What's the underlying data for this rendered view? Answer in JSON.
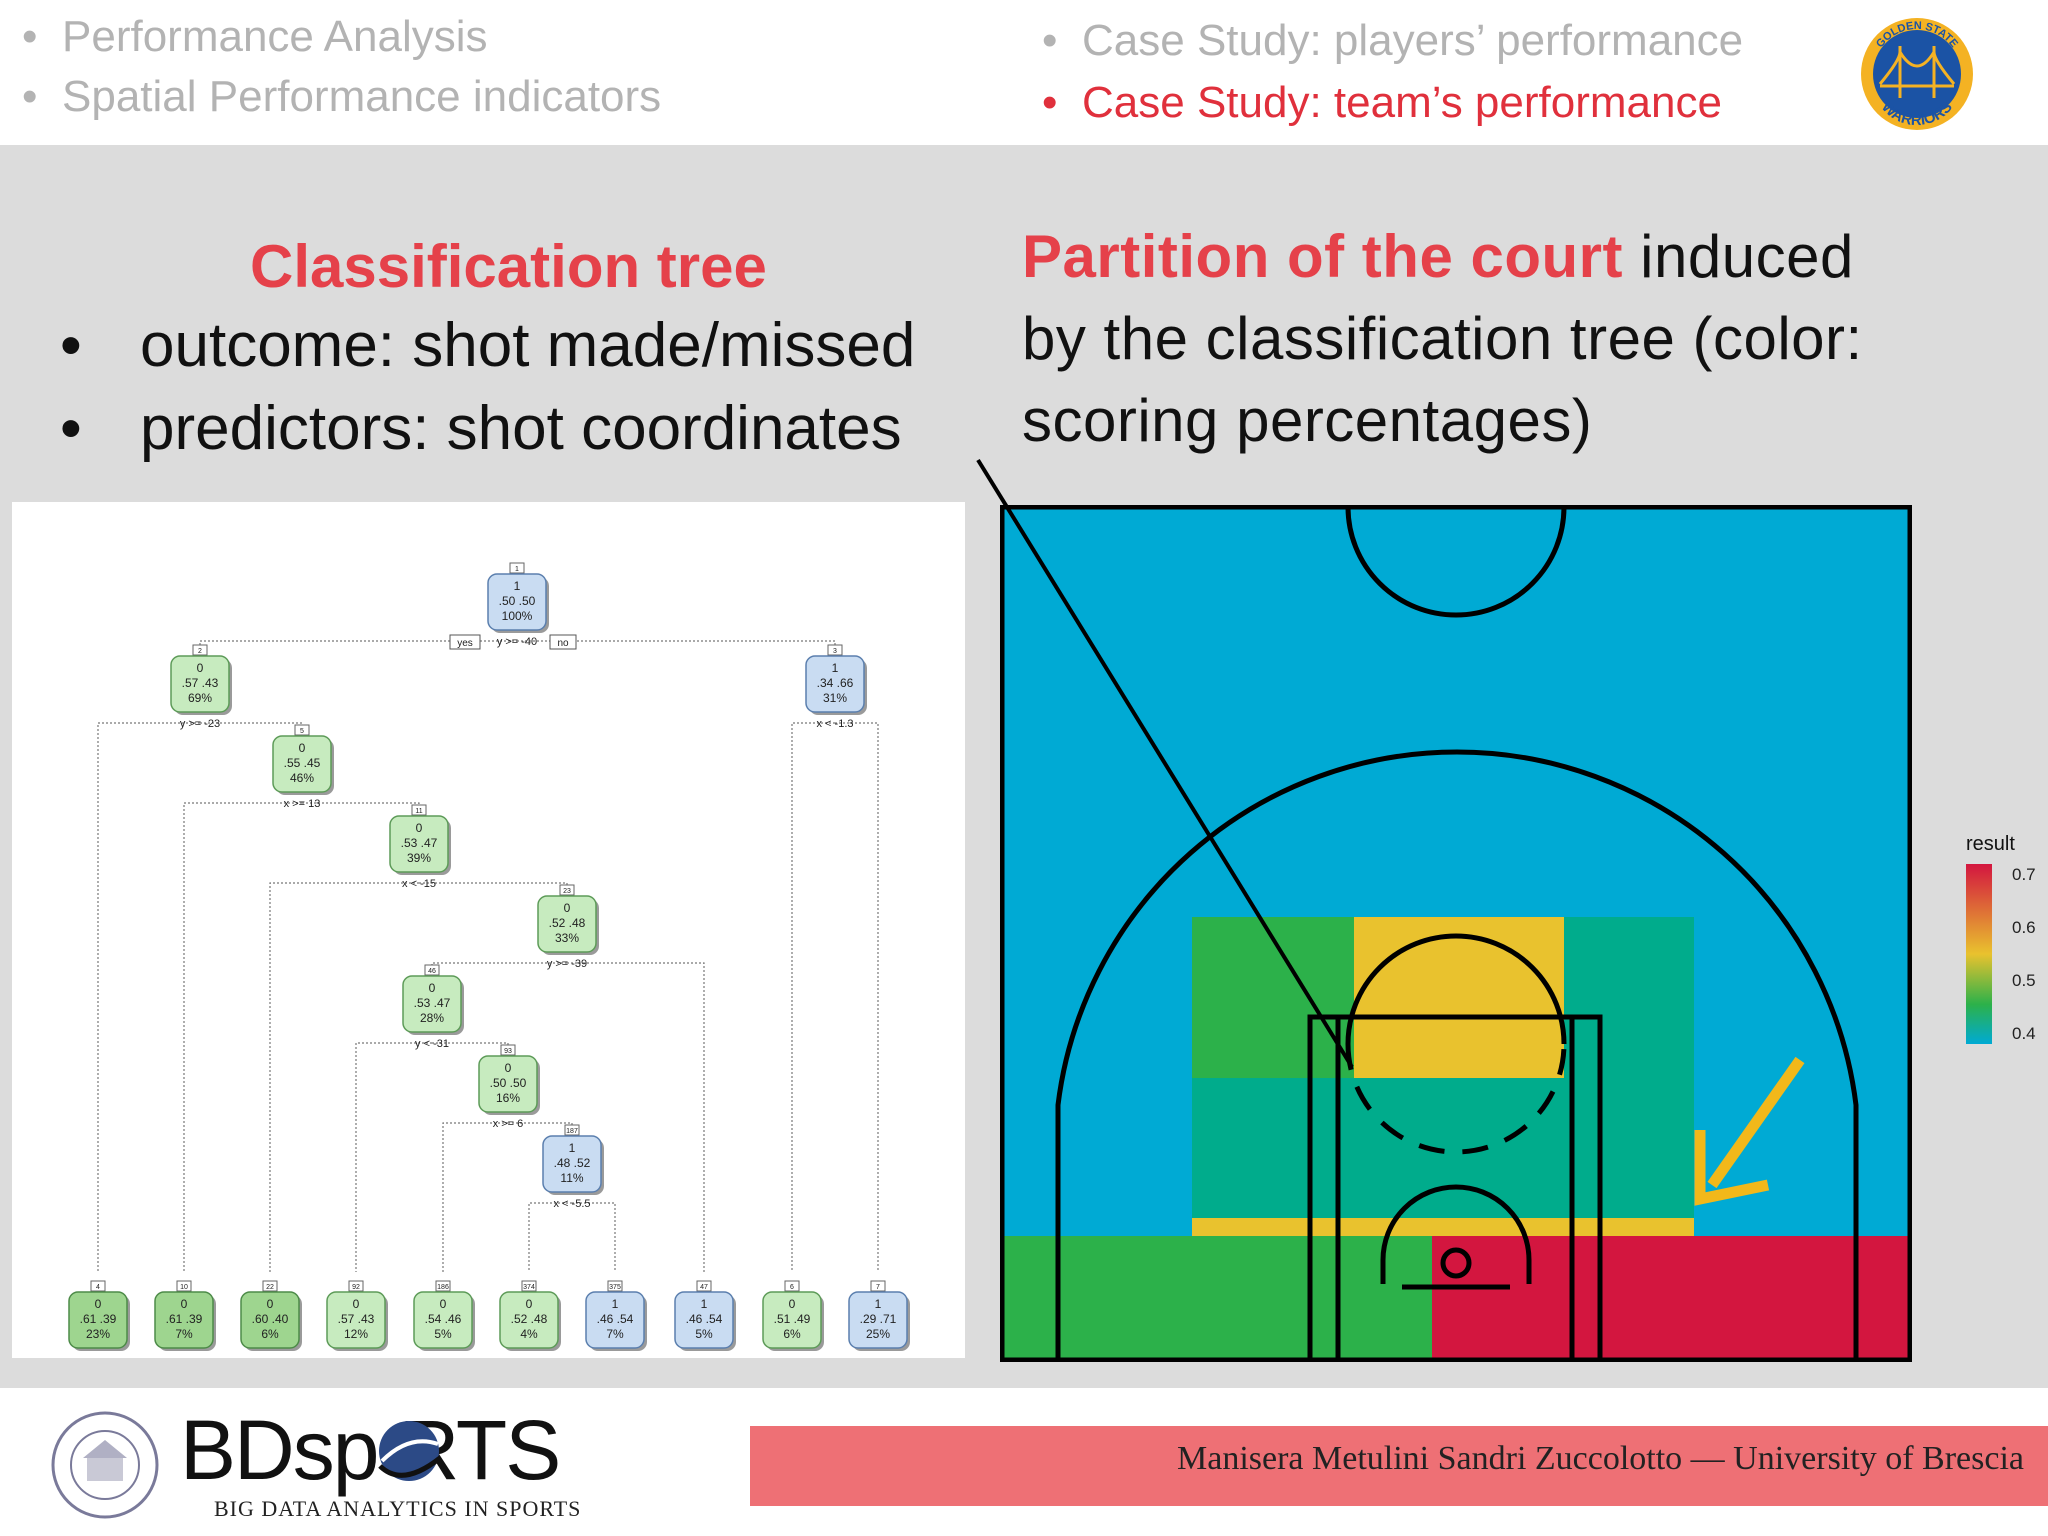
{
  "nav": {
    "left": [
      "Performance Analysis",
      "Spatial Performance indicators"
    ],
    "right": [
      "Case Study: players’ performance",
      "Case Study: team’s performance"
    ],
    "active_index": 1,
    "logo_text_top": "GOLDEN STATE",
    "logo_text_bottom": "WARRIORS"
  },
  "left_section": {
    "title": "Classification tree",
    "bullets": [
      "outcome: shot made/missed",
      "predictors: shot coordinates"
    ]
  },
  "right_section": {
    "line1_red": "Partition  of  the  court",
    "line1_rest": "induced",
    "line2": "by the classification tree (color:",
    "line3": "scoring percentages)"
  },
  "tree": {
    "nodes": [
      {
        "id": "1",
        "cls": "1",
        "probs": ".50 .50",
        "pct": "100%",
        "kind": "blue"
      },
      {
        "id": "2",
        "cls": "0",
        "probs": ".57 .43",
        "pct": "69%",
        "kind": "green"
      },
      {
        "id": "3",
        "cls": "1",
        "probs": ".34 .66",
        "pct": "31%",
        "kind": "blue"
      },
      {
        "id": "5",
        "cls": "0",
        "probs": ".55 .45",
        "pct": "46%",
        "kind": "green"
      },
      {
        "id": "11",
        "cls": "0",
        "probs": ".53 .47",
        "pct": "39%",
        "kind": "green"
      },
      {
        "id": "23",
        "cls": "0",
        "probs": ".52 .48",
        "pct": "33%",
        "kind": "green"
      },
      {
        "id": "46",
        "cls": "0",
        "probs": ".53 .47",
        "pct": "28%",
        "kind": "green"
      },
      {
        "id": "93",
        "cls": "0",
        "probs": ".50 .50",
        "pct": "16%",
        "kind": "green"
      },
      {
        "id": "187",
        "cls": "1",
        "probs": ".48 .52",
        "pct": "11%",
        "kind": "blue"
      },
      {
        "id": "4",
        "cls": "0",
        "probs": ".61 .39",
        "pct": "23%",
        "kind": "green2"
      },
      {
        "id": "10",
        "cls": "0",
        "probs": ".61 .39",
        "pct": "7%",
        "kind": "green2"
      },
      {
        "id": "22",
        "cls": "0",
        "probs": ".60 .40",
        "pct": "6%",
        "kind": "green2"
      },
      {
        "id": "92",
        "cls": "0",
        "probs": ".57 .43",
        "pct": "12%",
        "kind": "green"
      },
      {
        "id": "186",
        "cls": "0",
        "probs": ".54 .46",
        "pct": "5%",
        "kind": "green"
      },
      {
        "id": "374",
        "cls": "0",
        "probs": ".52 .48",
        "pct": "4%",
        "kind": "green"
      },
      {
        "id": "375",
        "cls": "1",
        "probs": ".46 .54",
        "pct": "7%",
        "kind": "blue"
      },
      {
        "id": "47",
        "cls": "1",
        "probs": ".46 .54",
        "pct": "5%",
        "kind": "blue"
      },
      {
        "id": "6",
        "cls": "0",
        "probs": ".51 .49",
        "pct": "6%",
        "kind": "green"
      },
      {
        "id": "7",
        "cls": "1",
        "probs": ".29 .71",
        "pct": "25%",
        "kind": "blue"
      }
    ],
    "splits": [
      "y >= -40",
      "y >= -23",
      "x < -1.3",
      "x >= 13",
      "x < -15",
      "y >= -39",
      "y < -31",
      "x >= 6",
      "x < -5.5"
    ],
    "yes_label": "yes",
    "no_label": "no"
  },
  "legend": {
    "title": "result",
    "ticks": [
      "0.7",
      "0.6",
      "0.5",
      "0.4"
    ]
  },
  "colors": {
    "high": "#d3163f",
    "mid": "#e9c22e",
    "green": "#2cb14a",
    "teal": "#00ac8c",
    "low": "#00aad4",
    "accent": "#e5414a"
  },
  "footer": {
    "brand": "BDsp RTS",
    "tagline": "BIG DATA ANALYTICS IN SPORTS",
    "authors": "Manisera Metulini Sandri Zuccolotto — University of Brescia"
  }
}
